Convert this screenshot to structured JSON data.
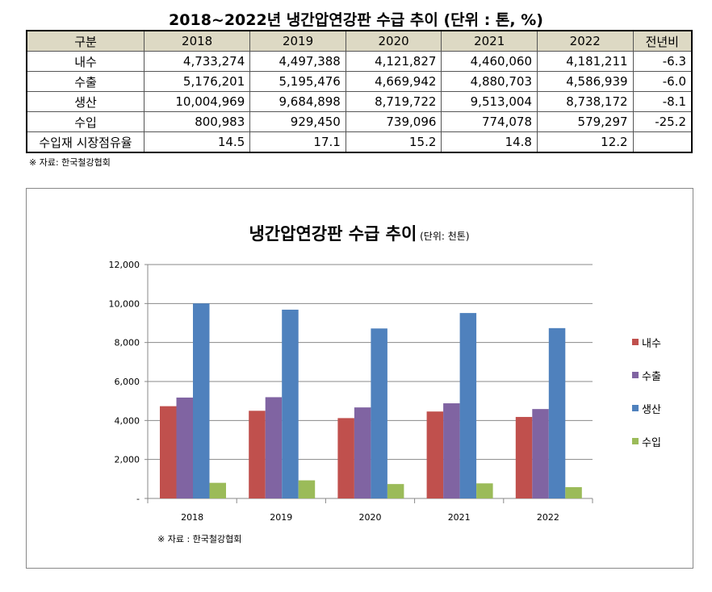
{
  "table": {
    "title": "2018~2022년 냉간압연강판 수급 추이 (단위 : 톤, %)",
    "headers": [
      "구분",
      "2018",
      "2019",
      "2020",
      "2021",
      "2022",
      "전년비"
    ],
    "rows": [
      [
        "내수",
        "4,733,274",
        "4,497,388",
        "4,121,827",
        "4,460,060",
        "4,181,211",
        "-6.3"
      ],
      [
        "수출",
        "5,176,201",
        "5,195,476",
        "4,669,942",
        "4,880,703",
        "4,586,939",
        "-6.0"
      ],
      [
        "생산",
        "10,004,969",
        "9,684,898",
        "8,719,722",
        "9,513,004",
        "8,738,172",
        "-8.1"
      ],
      [
        "수입",
        "800,983",
        "929,450",
        "739,096",
        "774,078",
        "579,297",
        "-25.2"
      ],
      [
        "수입재 시장점유율",
        "14.5",
        "17.1",
        "15.2",
        "14.8",
        "12.2",
        ""
      ]
    ],
    "source": "※ 자료: 한국철강협회"
  },
  "chart_data": {
    "type": "bar",
    "title": "냉간압연강판 수급 추이",
    "subtitle": "(단위: 천톤)",
    "categories": [
      "2018",
      "2019",
      "2020",
      "2021",
      "2022"
    ],
    "series": [
      {
        "name": "내수",
        "color": "#c0504d",
        "values": [
          4733,
          4497,
          4122,
          4460,
          4181
        ]
      },
      {
        "name": "수출",
        "color": "#8064a2",
        "values": [
          5176,
          5195,
          4670,
          4881,
          4587
        ]
      },
      {
        "name": "생산",
        "color": "#4f81bd",
        "values": [
          10005,
          9685,
          8720,
          9513,
          8738
        ]
      },
      {
        "name": "수입",
        "color": "#9bbb59",
        "values": [
          801,
          929,
          739,
          774,
          579
        ]
      }
    ],
    "ylim": [
      0,
      12000
    ],
    "yticks": [
      "-",
      "2,000",
      "4,000",
      "6,000",
      "8,000",
      "10,000",
      "12,000"
    ],
    "grid": true,
    "legend": "right",
    "source": "※ 자료 : 한국철강협회"
  }
}
